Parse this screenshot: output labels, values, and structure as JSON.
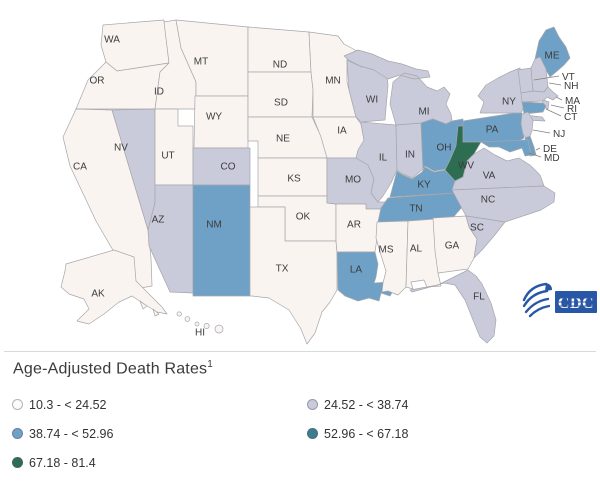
{
  "legend": {
    "title": "Age-Adjusted Death Rates",
    "title_superscript": "1",
    "items": [
      {
        "category": "c1",
        "label": "10.3 - < 24.52",
        "color": "#fdfbfa",
        "map_fill": "#faf4f1"
      },
      {
        "category": "c2",
        "label": "24.52 - < 38.74",
        "color": "#c9cbdb",
        "map_fill": "#c9cbdb"
      },
      {
        "category": "c3",
        "label": "38.74 - < 52.96",
        "color": "#6fa1c6",
        "map_fill": "#6fa1c6"
      },
      {
        "category": "c4",
        "label": "52.96 - < 67.18",
        "color": "#3a7e8c",
        "map_fill": "#3a7e8c"
      },
      {
        "category": "c5",
        "label": "67.18 - 81.4",
        "color": "#2d6e53",
        "map_fill": "#2d6e53"
      }
    ]
  },
  "map": {
    "border_color": "#a6a6ab",
    "label_color": "#3c3c3c",
    "states": [
      {
        "abbr": "WA",
        "category": "c1"
      },
      {
        "abbr": "OR",
        "category": "c1"
      },
      {
        "abbr": "CA",
        "category": "c1"
      },
      {
        "abbr": "ID",
        "category": "c1"
      },
      {
        "abbr": "NV",
        "category": "c2"
      },
      {
        "abbr": "UT",
        "category": "c1"
      },
      {
        "abbr": "AZ",
        "category": "c2"
      },
      {
        "abbr": "MT",
        "category": "c1"
      },
      {
        "abbr": "WY",
        "category": "c1"
      },
      {
        "abbr": "CO",
        "category": "c2"
      },
      {
        "abbr": "NM",
        "category": "c3"
      },
      {
        "abbr": "ND",
        "category": "c1"
      },
      {
        "abbr": "SD",
        "category": "c1"
      },
      {
        "abbr": "NE",
        "category": "c1"
      },
      {
        "abbr": "KS",
        "category": "c1"
      },
      {
        "abbr": "OK",
        "category": "c1"
      },
      {
        "abbr": "TX",
        "category": "c1"
      },
      {
        "abbr": "MN",
        "category": "c1"
      },
      {
        "abbr": "IA",
        "category": "c1"
      },
      {
        "abbr": "MO",
        "category": "c2"
      },
      {
        "abbr": "AR",
        "category": "c1"
      },
      {
        "abbr": "LA",
        "category": "c3"
      },
      {
        "abbr": "WI",
        "category": "c2"
      },
      {
        "abbr": "IL",
        "category": "c2"
      },
      {
        "abbr": "IN",
        "category": "c2"
      },
      {
        "abbr": "MI",
        "category": "c2"
      },
      {
        "abbr": "OH",
        "category": "c3"
      },
      {
        "abbr": "KY",
        "category": "c3"
      },
      {
        "abbr": "TN",
        "category": "c3"
      },
      {
        "abbr": "MS",
        "category": "c1"
      },
      {
        "abbr": "AL",
        "category": "c1"
      },
      {
        "abbr": "GA",
        "category": "c1"
      },
      {
        "abbr": "WV",
        "category": "c5"
      },
      {
        "abbr": "VA",
        "category": "c2"
      },
      {
        "abbr": "NC",
        "category": "c2"
      },
      {
        "abbr": "SC",
        "category": "c2"
      },
      {
        "abbr": "FL",
        "category": "c2"
      },
      {
        "abbr": "PA",
        "category": "c3"
      },
      {
        "abbr": "NY",
        "category": "c2"
      },
      {
        "abbr": "ME",
        "category": "c3"
      },
      {
        "abbr": "VT",
        "category": "c2"
      },
      {
        "abbr": "NH",
        "category": "c2"
      },
      {
        "abbr": "MA",
        "category": "c2"
      },
      {
        "abbr": "RI",
        "category": "c2"
      },
      {
        "abbr": "CT",
        "category": "c3"
      },
      {
        "abbr": "NJ",
        "category": "c2"
      },
      {
        "abbr": "DE",
        "category": "c3"
      },
      {
        "abbr": "MD",
        "category": "c3"
      },
      {
        "abbr": "AK",
        "category": "c1"
      },
      {
        "abbr": "HI",
        "category": "c1"
      }
    ]
  },
  "logo": {
    "cdc_text": "CDC",
    "hhs_icon": "hhs-eagle-icon",
    "color": "#2857a6"
  }
}
